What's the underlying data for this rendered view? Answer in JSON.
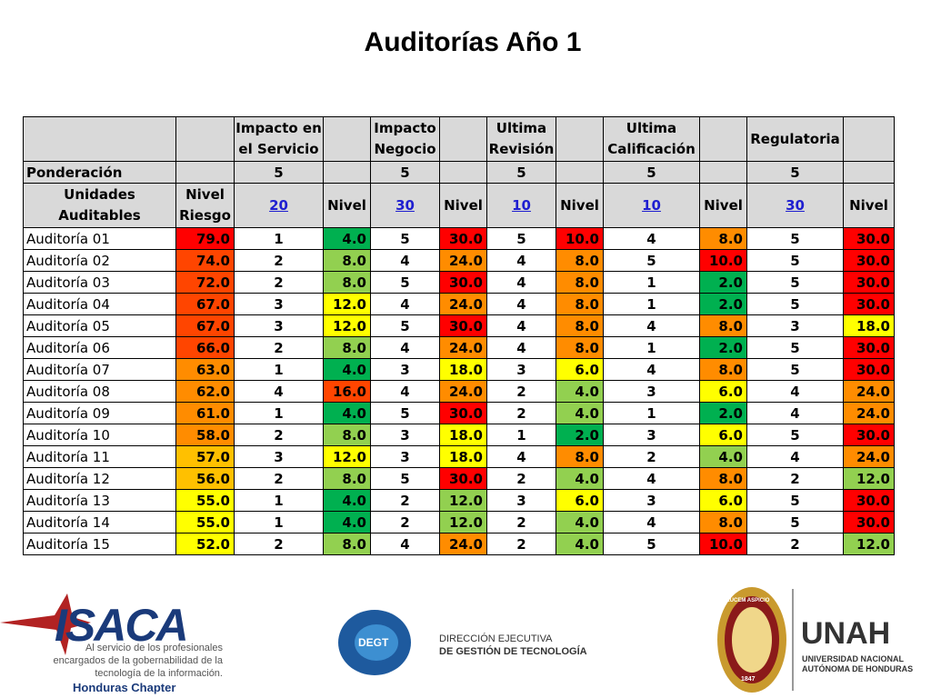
{
  "title": "Auditorías Año 1",
  "colors": {
    "red": "#ff0000",
    "orangered": "#ff4500",
    "orange": "#ff8c00",
    "amber": "#ffc000",
    "yellow": "#ffff00",
    "lightgreen": "#92d050",
    "green": "#00b050",
    "header": "#d9d9d9"
  },
  "table": {
    "header": {
      "impacto_servicio": "Impacto en el Servicio",
      "impacto_negocio": "Impacto Negocio",
      "ultima_revision": "Ultima Revisión",
      "ultima_calificacion": "Ultima Calificación",
      "regulatoria": "Regulatoria",
      "ponderacion": "Ponderación",
      "ponderacion_values": [
        "5",
        "5",
        "5",
        "5",
        "5"
      ],
      "unidades": "Unidades Auditables",
      "nivel_riesgo": "Nivel Riesgo",
      "weights": [
        "20",
        "30",
        "10",
        "10",
        "30"
      ],
      "nivel": "Nivel"
    },
    "rows": [
      {
        "name": "Auditoría 01",
        "riesgo": "79.0",
        "vals": [
          "1",
          "5",
          "5",
          "4",
          "5"
        ],
        "niveles": [
          "4.0",
          "30.0",
          "10.0",
          "8.0",
          "30.0"
        ]
      },
      {
        "name": "Auditoría 02",
        "riesgo": "74.0",
        "vals": [
          "2",
          "4",
          "4",
          "5",
          "5"
        ],
        "niveles": [
          "8.0",
          "24.0",
          "8.0",
          "10.0",
          "30.0"
        ]
      },
      {
        "name": "Auditoría 03",
        "riesgo": "72.0",
        "vals": [
          "2",
          "5",
          "4",
          "1",
          "5"
        ],
        "niveles": [
          "8.0",
          "30.0",
          "8.0",
          "2.0",
          "30.0"
        ]
      },
      {
        "name": "Auditoría 04",
        "riesgo": "67.0",
        "vals": [
          "3",
          "4",
          "4",
          "1",
          "5"
        ],
        "niveles": [
          "12.0",
          "24.0",
          "8.0",
          "2.0",
          "30.0"
        ]
      },
      {
        "name": "Auditoría 05",
        "riesgo": "67.0",
        "vals": [
          "3",
          "5",
          "4",
          "4",
          "3"
        ],
        "niveles": [
          "12.0",
          "30.0",
          "8.0",
          "8.0",
          "18.0"
        ]
      },
      {
        "name": "Auditoría 06",
        "riesgo": "66.0",
        "vals": [
          "2",
          "4",
          "4",
          "1",
          "5"
        ],
        "niveles": [
          "8.0",
          "24.0",
          "8.0",
          "2.0",
          "30.0"
        ]
      },
      {
        "name": "Auditoría 07",
        "riesgo": "63.0",
        "vals": [
          "1",
          "3",
          "3",
          "4",
          "5"
        ],
        "niveles": [
          "4.0",
          "18.0",
          "6.0",
          "8.0",
          "30.0"
        ]
      },
      {
        "name": "Auditoría 08",
        "riesgo": "62.0",
        "vals": [
          "4",
          "4",
          "2",
          "3",
          "4"
        ],
        "niveles": [
          "16.0",
          "24.0",
          "4.0",
          "6.0",
          "24.0"
        ]
      },
      {
        "name": "Auditoría 09",
        "riesgo": "61.0",
        "vals": [
          "1",
          "5",
          "2",
          "1",
          "4"
        ],
        "niveles": [
          "4.0",
          "30.0",
          "4.0",
          "2.0",
          "24.0"
        ]
      },
      {
        "name": "Auditoría 10",
        "riesgo": "58.0",
        "vals": [
          "2",
          "3",
          "1",
          "3",
          "5"
        ],
        "niveles": [
          "8.0",
          "18.0",
          "2.0",
          "6.0",
          "30.0"
        ]
      },
      {
        "name": "Auditoría 11",
        "riesgo": "57.0",
        "vals": [
          "3",
          "3",
          "4",
          "2",
          "4"
        ],
        "niveles": [
          "12.0",
          "18.0",
          "8.0",
          "4.0",
          "24.0"
        ]
      },
      {
        "name": "Auditoría 12",
        "riesgo": "56.0",
        "vals": [
          "2",
          "5",
          "2",
          "4",
          "2"
        ],
        "niveles": [
          "8.0",
          "30.0",
          "4.0",
          "8.0",
          "12.0"
        ]
      },
      {
        "name": "Auditoría 13",
        "riesgo": "55.0",
        "vals": [
          "1",
          "2",
          "3",
          "3",
          "5"
        ],
        "niveles": [
          "4.0",
          "12.0",
          "6.0",
          "6.0",
          "30.0"
        ]
      },
      {
        "name": "Auditoría 14",
        "riesgo": "55.0",
        "vals": [
          "1",
          "2",
          "2",
          "4",
          "5"
        ],
        "niveles": [
          "4.0",
          "12.0",
          "4.0",
          "8.0",
          "30.0"
        ]
      },
      {
        "name": "Auditoría 15",
        "riesgo": "52.0",
        "vals": [
          "2",
          "4",
          "2",
          "5",
          "2"
        ],
        "niveles": [
          "8.0",
          "24.0",
          "4.0",
          "10.0",
          "12.0"
        ]
      }
    ]
  },
  "logos": {
    "isaca": {
      "name": "ISACA",
      "line1": "Al servicio de los profesionales",
      "line2": "encargados de la gobernabilidad de la",
      "line3": "tecnología de la información.",
      "chapter": "Honduras Chapter"
    },
    "degt": {
      "badge": "DEGT",
      "line1": "DIRECCIÓN EJECUTIVA",
      "line2": "DE GESTIÓN DE TECNOLOGÍA"
    },
    "unah": {
      "name": "UNAH",
      "line1": "UNIVERSIDAD NACIONAL",
      "line2": "AUTÓNOMA DE HONDURAS",
      "seal_motto": "LUCEM ASPICIO",
      "seal_year": "1847"
    }
  }
}
